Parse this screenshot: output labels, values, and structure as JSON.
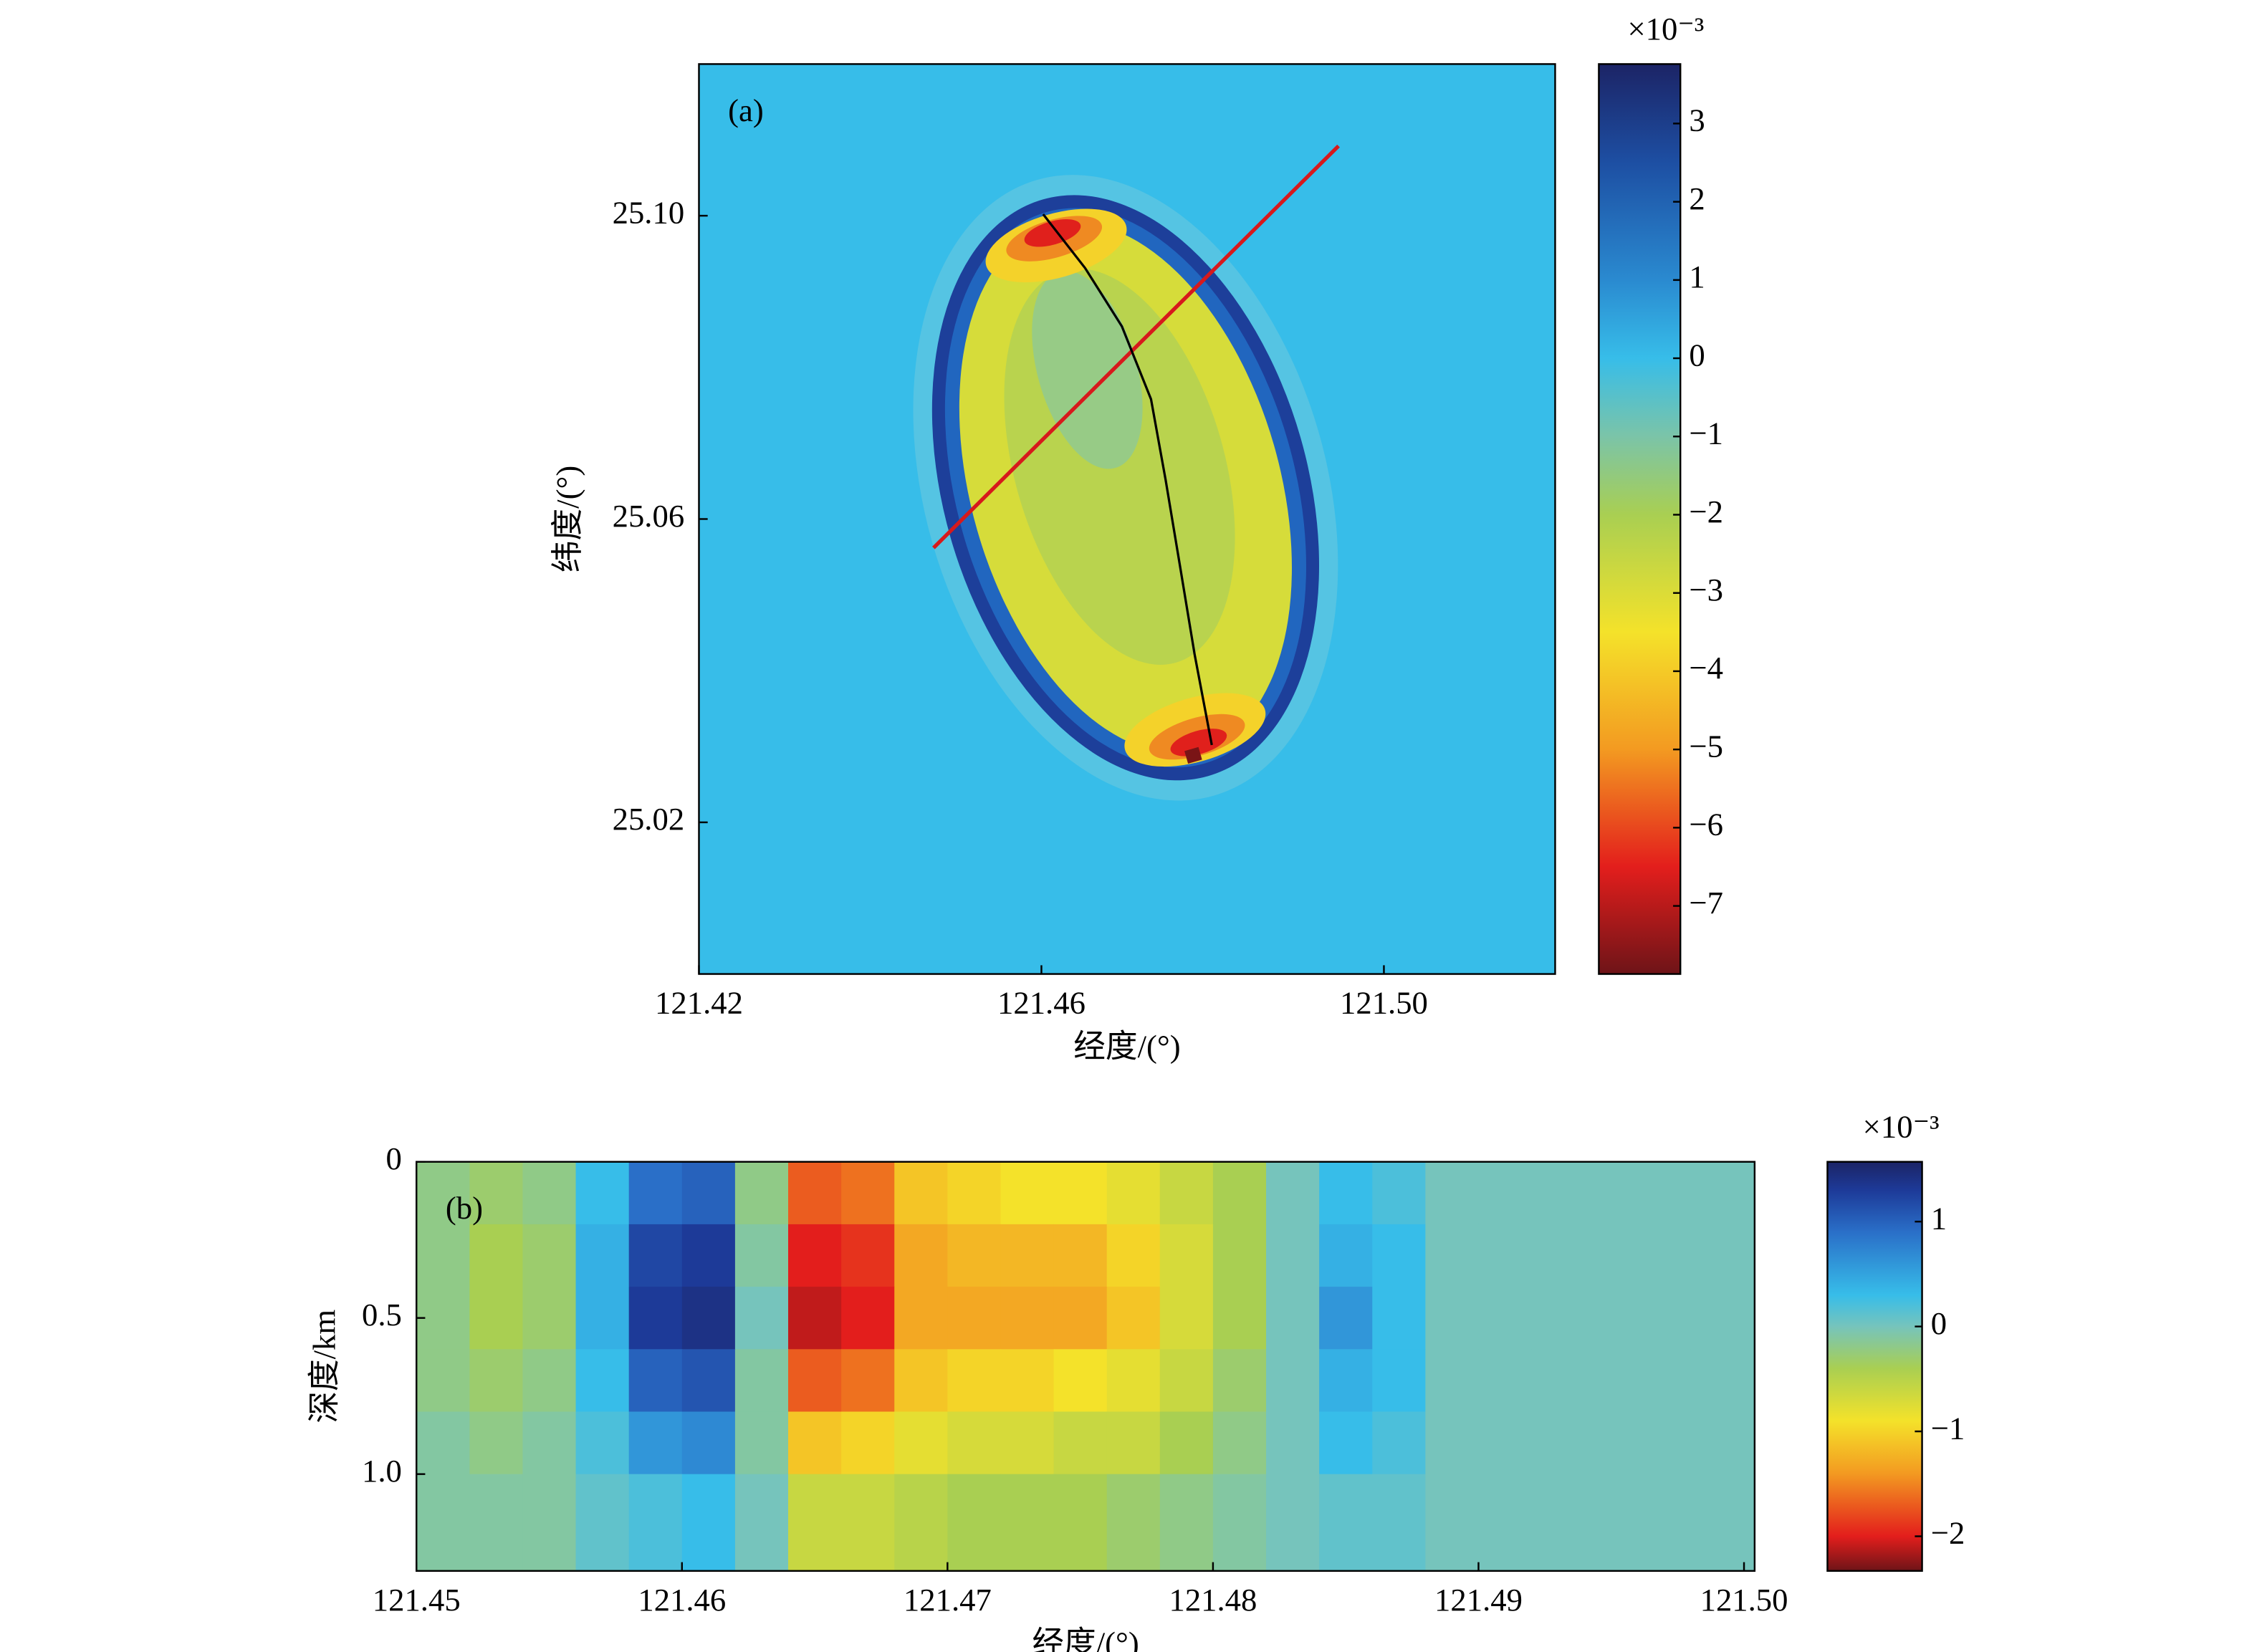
{
  "chart_data": [
    {
      "type": "heatmap",
      "annotation": "(a)",
      "xlabel": "经度/(°)",
      "ylabel": "纬度/(°)",
      "xlim": [
        121.42,
        121.52
      ],
      "ylim": [
        25.0,
        25.12
      ],
      "xticks": [
        121.42,
        121.46,
        {
          "value": 121.5,
          "label": "121.50"
        }
      ],
      "yticks": [
        {
          "value": 25.1,
          "label": "25.10"
        },
        25.06,
        25.02
      ],
      "colorbar_label": "×10⁻³",
      "colorbar_lim": [
        -7.87,
        3.76
      ],
      "colorbar_ticks": [
        3,
        2,
        1,
        0,
        {
          "value": -1,
          "label": "−1"
        },
        {
          "value": -2,
          "label": "−2"
        },
        {
          "value": -3,
          "label": "−3"
        },
        {
          "value": -4,
          "label": "−4"
        },
        {
          "value": -5,
          "label": "−5"
        },
        {
          "value": -6,
          "label": "−6"
        },
        {
          "value": -7,
          "label": "−7"
        }
      ],
      "colormap": [
        [
          -7.87,
          "#6e1418"
        ],
        [
          -6.5,
          "#e31e1c"
        ],
        [
          -5,
          "#f39a21"
        ],
        [
          -3.5,
          "#f4e22a"
        ],
        [
          -2,
          "#a9cf52"
        ],
        [
          -1,
          "#7bc4a8"
        ],
        [
          0,
          "#37bde9"
        ],
        [
          1,
          "#2a8ad0"
        ],
        [
          2.5,
          "#1d4fa3"
        ],
        [
          3.76,
          "#1c2466"
        ]
      ],
      "lines": [
        {
          "color": "#d7191c",
          "x": [
            121.4474,
            121.4947
          ],
          "y": [
            25.0562,
            25.1092
          ]
        },
        {
          "color": "#000000",
          "x": [
            121.4602,
            121.4651,
            121.4694,
            121.4728,
            121.4745,
            121.4762,
            121.4779,
            121.4799
          ],
          "y": [
            25.1002,
            25.0931,
            25.0854,
            25.0758,
            25.0652,
            25.0537,
            25.0421,
            25.0302
          ]
        }
      ]
    },
    {
      "type": "heatmap",
      "annotation": "(b)",
      "xlabel": "经度/(°)",
      "ylabel": "深度/km",
      "xlim": [
        121.45,
        121.5004
      ],
      "ylim": [
        0,
        1.31
      ],
      "y_inverted": true,
      "xticks": [
        121.45,
        121.46,
        121.47,
        121.48,
        121.49,
        {
          "value": 121.5,
          "label": "121.50"
        }
      ],
      "yticks": [
        0,
        0.5,
        {
          "value": 1.0,
          "label": "1.0"
        }
      ],
      "colorbar_label": "×10⁻³",
      "colorbar_lim": [
        -2.33,
        1.57
      ],
      "colorbar_ticks": [
        1,
        0,
        {
          "value": -1,
          "label": "−1"
        },
        {
          "value": -2,
          "label": "−2"
        }
      ],
      "colormap": [
        [
          -2.33,
          "#6e1418"
        ],
        [
          -2,
          "#e31e1c"
        ],
        [
          -1.4,
          "#f39a21"
        ],
        [
          -0.9,
          "#f4e22a"
        ],
        [
          -0.4,
          "#a9cf52"
        ],
        [
          0,
          "#76c4bc"
        ],
        [
          0.3,
          "#37bde9"
        ],
        [
          0.9,
          "#2a6fc8"
        ],
        [
          1.3,
          "#1d3a98"
        ],
        [
          1.57,
          "#1c2466"
        ]
      ],
      "x_edges": [
        121.45,
        121.452,
        121.454,
        121.456,
        121.458,
        121.46,
        121.462,
        121.464,
        121.466,
        121.468,
        121.47,
        121.472,
        121.474,
        121.476,
        121.478,
        121.48,
        121.482,
        121.484,
        121.486,
        121.488,
        121.49,
        121.492,
        121.494,
        121.496,
        121.498,
        121.5
      ],
      "y_edges": [
        0,
        0.2,
        0.4,
        0.6,
        0.8,
        1.0,
        1.31
      ],
      "values": [
        [
          -0.2,
          -0.3,
          -0.2,
          0.3,
          0.9,
          1.0,
          -0.2,
          -1.7,
          -1.6,
          -1.1,
          -1.0,
          -0.9,
          -0.9,
          -0.8,
          -0.6,
          -0.4,
          0,
          0.3,
          0.2,
          0,
          0,
          0,
          0,
          0,
          0
        ],
        [
          -0.2,
          -0.4,
          -0.3,
          0.4,
          1.2,
          1.3,
          -0.1,
          -2.0,
          -1.9,
          -1.3,
          -1.2,
          -1.2,
          -1.2,
          -1.0,
          -0.7,
          -0.4,
          0,
          0.4,
          0.3,
          0,
          0,
          0,
          0,
          0,
          0
        ],
        [
          -0.2,
          -0.4,
          -0.3,
          0.4,
          1.3,
          1.4,
          0,
          -2.1,
          -2.0,
          -1.3,
          -1.3,
          -1.3,
          -1.3,
          -1.1,
          -0.7,
          -0.4,
          0,
          0.6,
          0.3,
          0,
          0,
          0,
          0,
          0,
          0
        ],
        [
          -0.2,
          -0.3,
          -0.2,
          0.3,
          1.0,
          1.1,
          -0.1,
          -1.7,
          -1.6,
          -1.1,
          -1.0,
          -1.0,
          -0.9,
          -0.8,
          -0.6,
          -0.3,
          0,
          0.4,
          0.3,
          0,
          0,
          0,
          0,
          0,
          0
        ],
        [
          -0.1,
          -0.2,
          -0.1,
          0.2,
          0.6,
          0.7,
          -0.1,
          -1.1,
          -1.0,
          -0.8,
          -0.7,
          -0.7,
          -0.6,
          -0.6,
          -0.4,
          -0.2,
          0,
          0.3,
          0.2,
          0,
          0,
          0,
          0,
          0,
          0
        ],
        [
          -0.1,
          -0.1,
          -0.1,
          0.1,
          0.2,
          0.3,
          0,
          -0.6,
          -0.6,
          -0.5,
          -0.4,
          -0.4,
          -0.4,
          -0.3,
          -0.2,
          -0.1,
          0,
          0.1,
          0.1,
          0,
          0,
          0,
          0,
          0,
          0
        ]
      ]
    }
  ]
}
